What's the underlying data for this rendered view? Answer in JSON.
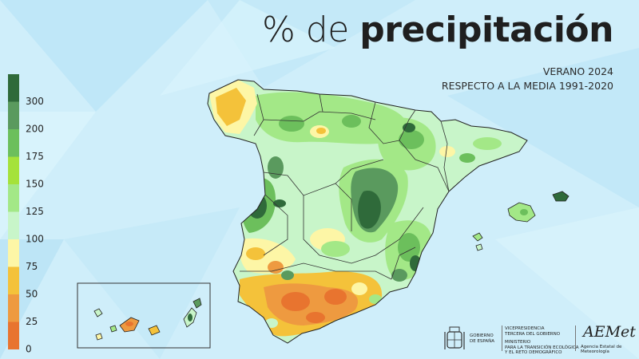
{
  "header": {
    "title_light": "% de",
    "title_bold": "precipitación",
    "subtitle_line1": "VERANO 2024",
    "subtitle_line2": "RESPECTO A LA MEDIA 1991-2020"
  },
  "legend": {
    "labels": [
      "300",
      "200",
      "175",
      "150",
      "125",
      "100",
      "75",
      "50",
      "25",
      "0"
    ],
    "colors": [
      "#2f6a3a",
      "#5a9a5e",
      "#6cbf5c",
      "#a5e23a",
      "#a3e887",
      "#c8f5c9",
      "#fdf6a6",
      "#f4c23a",
      "#ee9a40",
      "#e8742f"
    ]
  },
  "logos": {
    "gobierno_line1": "GOBIERNO",
    "gobierno_line2": "DE ESPAÑA",
    "vice_line1": "VICEPRESIDENCIA",
    "vice_line2": "TERCERA DEL GOBIERNO",
    "min_line1": "MINISTERIO",
    "min_line2": "PARA LA TRANSICIÓN ECOLÓGICA",
    "min_line3": "Y EL RETO DEMOGRÁFICO",
    "aemet": "AEMet",
    "agency": "Agencia Estatal de Meteorología"
  }
}
